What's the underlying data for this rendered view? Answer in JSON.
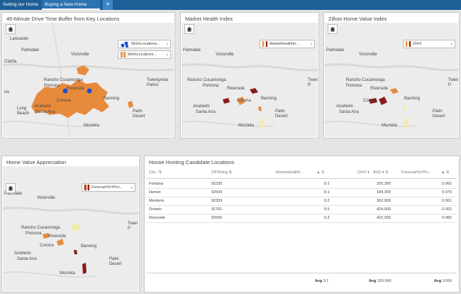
{
  "tabs": [
    {
      "label": "Selling our Home"
    },
    {
      "label": "Buying a New Home"
    },
    {
      "label": "+"
    }
  ],
  "panels": {
    "drive": {
      "title": "45-Minute Drive Time Buffer from Key Locations",
      "legend": [
        {
          "label": "WorkLocations...",
          "icon": "blue-dots-icon"
        },
        {
          "label": "WorkLocations...",
          "icon": "orange-bars-icon"
        }
      ],
      "labels": [
        "Lancaster",
        "Palmdale",
        "Victorville",
        "Clarita",
        "Twentynine Palms",
        "Rancho Cucamonga",
        "Pomona",
        "Riverside",
        "Corona",
        "Anaheim",
        "Long Beach",
        "Santa Ana",
        "Palm Desert",
        "Murrieta",
        "Banning",
        "na"
      ]
    },
    "market": {
      "title": "Market Health Index",
      "legend": [
        {
          "label": "MarketHealthIn...",
          "icon": "orange-bars-icon"
        }
      ],
      "labels": [
        "Palmdale",
        "Victorville",
        "Rancho Cucamonga",
        "Twen P",
        "Pomona",
        "Riverside",
        "Corona",
        "Banning",
        "Anaheim",
        "Santa Ana",
        "Palm Desert",
        "Murrieta"
      ]
    },
    "zillow": {
      "title": "Zillow Home Value Index",
      "legend": [
        {
          "label": "ZHVI",
          "icon": "orange-bars-icon"
        }
      ],
      "labels": [
        "Palmdale",
        "Victorville",
        "Rancho Cucamonga",
        "Twen P",
        "Pomona",
        "Riverside",
        "Corona",
        "Banning",
        "Anaheim",
        "Santa Ana",
        "Palm Desert",
        "Murrieta"
      ]
    },
    "appreciation": {
      "title": "Home Value Appreciation",
      "legend": [
        {
          "label": "ForecastYoYPct...",
          "icon": "red-bars-icon"
        }
      ],
      "labels": [
        "Palmdale",
        "Victorville",
        "Rancho Cucamonga",
        "Twen P",
        "Pomona",
        "Riverside",
        "Corona",
        "Banning",
        "Anaheim",
        "Santa Ana",
        "Palm Desert",
        "Murrieta"
      ]
    },
    "candidates": {
      "title": "House Hunting Candidate Locations",
      "columns": [
        "City ↓⇅",
        "ZIPString ⇅",
        "MarketHealthI...",
        "▲ ⇅",
        "ZHVI ▾",
        "AVG ▾ ⇅",
        "ForecastYoYPc...",
        "▲ ⇅"
      ],
      "rows": [
        {
          "city": "Fontana",
          "zip": "92335",
          "health": "9.1",
          "zhvi": "320,300",
          "forecast": "0.062"
        },
        {
          "city": "Hemet",
          "zip": "92543",
          "health": "8.1",
          "zhvi": "184,300",
          "forecast": "0.079"
        },
        {
          "city": "Mentone",
          "zip": "92359",
          "health": "9.2",
          "zhvi": "302,900",
          "forecast": "0.061"
        },
        {
          "city": "Ontario",
          "zip": "91761",
          "health": "9.6",
          "zhvi": "424,900",
          "forecast": "0.063"
        },
        {
          "city": "Riverside",
          "zip": "92506",
          "health": "9.3",
          "zhvi": "422,300",
          "forecast": "0.066"
        }
      ],
      "footer": {
        "health_label": "Avg",
        "health_avg": "9.1",
        "zhvi_label": "Avg",
        "zhvi_avg": "330,940",
        "forecast_label": "Avg",
        "forecast_avg": "0.066"
      }
    }
  },
  "colors": {
    "header": "#1f5f97",
    "buffer": "#e88a3c",
    "dark_red": "#8b1a1a",
    "light_yellow": "#f4eca8",
    "blue_dot": "#1e4fd6"
  }
}
